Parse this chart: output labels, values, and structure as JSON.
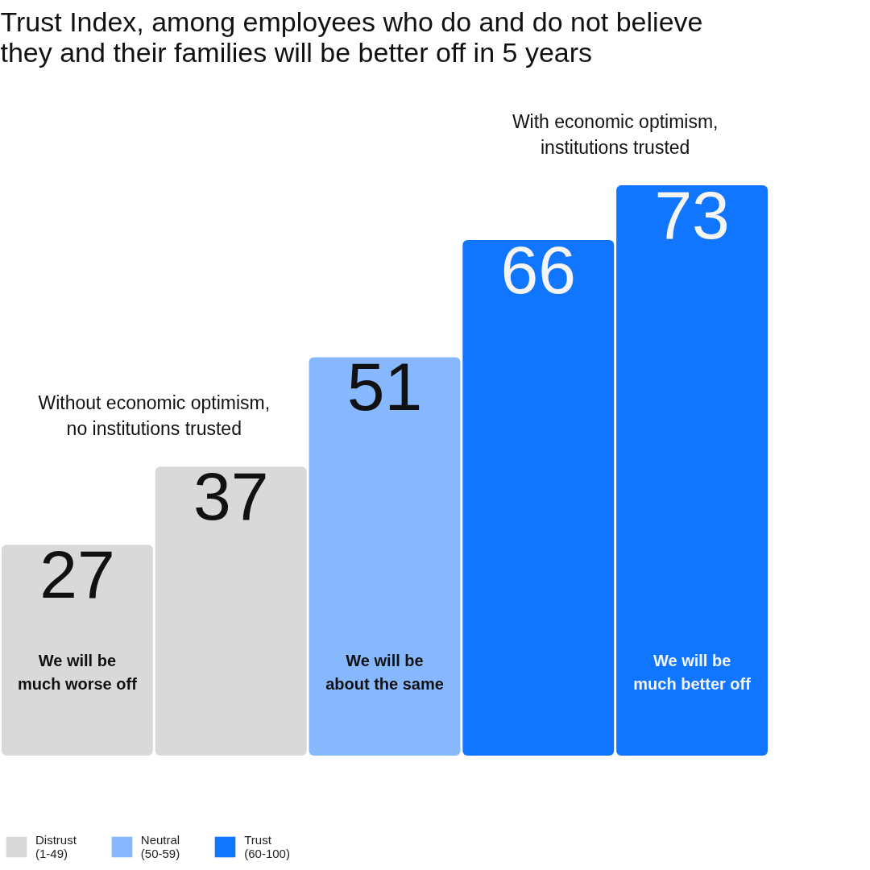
{
  "chart_data": {
    "type": "bar",
    "title": "Trust Index, among employees who do and do not believe they and their families will be better off in 5 years",
    "categories": [
      "We will be much worse off",
      null,
      "We will be about the same",
      null,
      "We will be much better off"
    ],
    "series": [
      {
        "name": "Distrust (1-49)",
        "color": "#d9d9d9",
        "values": [
          27,
          37,
          null,
          null,
          null
        ]
      },
      {
        "name": "Neutral (50-59)",
        "color": "#87b8fd",
        "values": [
          null,
          null,
          51,
          null,
          null
        ]
      },
      {
        "name": "Trust (60-100)",
        "color": "#1075ff",
        "values": [
          null,
          null,
          null,
          66,
          73
        ]
      }
    ],
    "stacked": true,
    "data_labels": true,
    "tick_labels": "x",
    "legend": "bottom left",
    "annotations": [
      "Without economic optimism, no institutions trusted",
      "With economic optimism, institutions trusted"
    ]
  }
}
